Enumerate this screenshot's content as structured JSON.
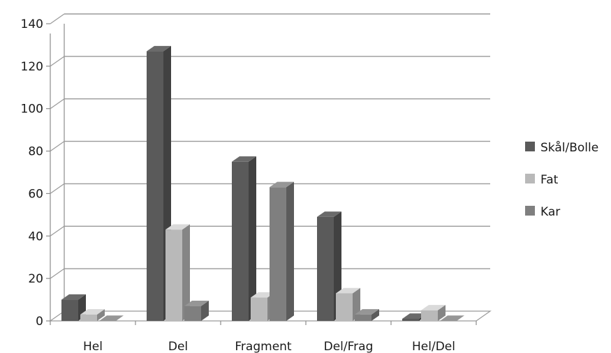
{
  "chart_data": {
    "type": "bar",
    "style": "3d-clustered-column",
    "categories": [
      "Hel",
      "Del",
      "Fragment",
      "Del/Frag",
      "Hel/Del"
    ],
    "series": [
      {
        "name": "Skål/Bolle",
        "values": [
          10,
          127,
          75,
          49,
          1
        ],
        "color": "#5a5a5a"
      },
      {
        "name": "Fat",
        "values": [
          3,
          43,
          11,
          13,
          5
        ],
        "color": "#b9b9b9"
      },
      {
        "name": "Kar",
        "values": [
          0,
          7,
          63,
          3,
          0
        ],
        "color": "#7f7f7f"
      }
    ],
    "y_ticks": [
      "0",
      "20",
      "40",
      "60",
      "80",
      "100",
      "120",
      "140"
    ],
    "ylim": [
      0,
      140
    ],
    "grid": true,
    "legend_position": "right",
    "title": "",
    "xlabel": "",
    "ylabel": ""
  }
}
